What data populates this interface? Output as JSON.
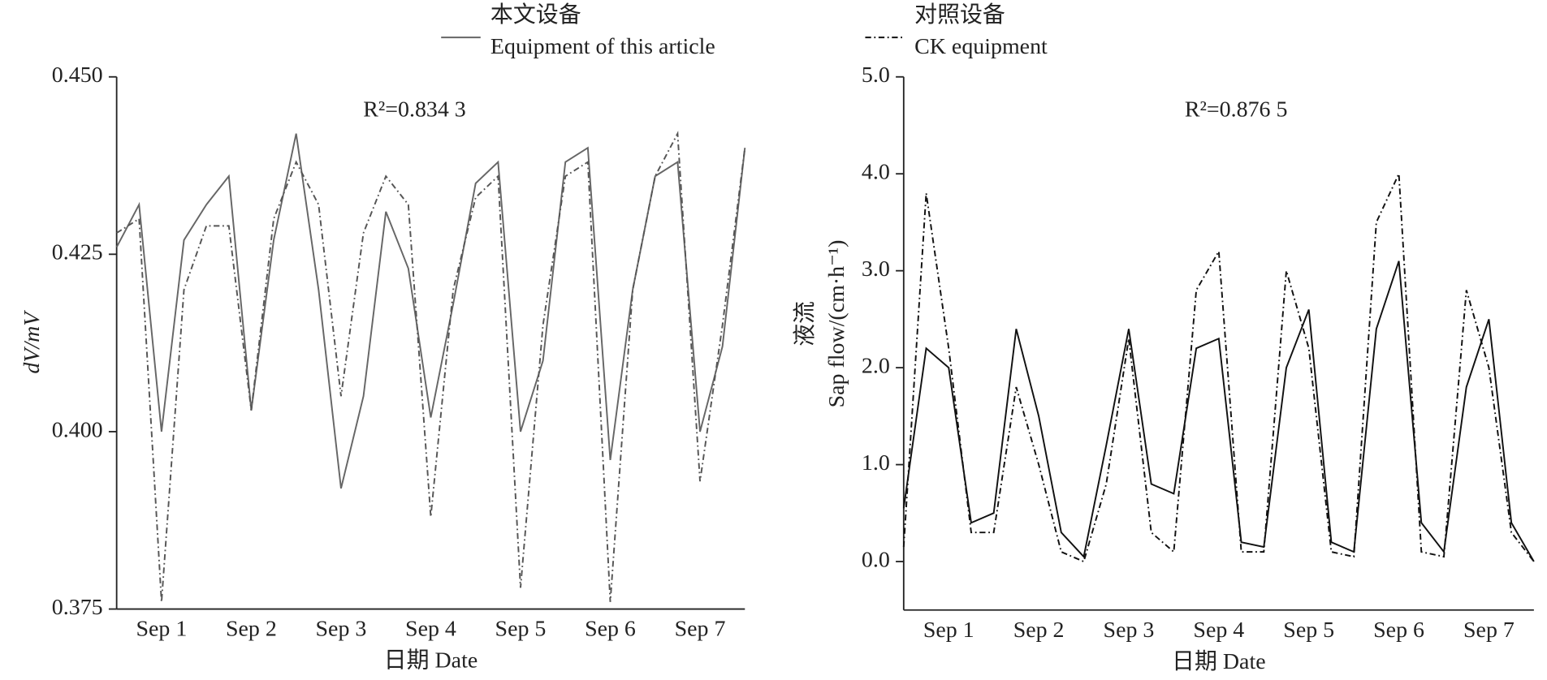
{
  "chart_data": [
    {
      "type": "line",
      "ylabel": "dV/mV",
      "xlabel": "日期 Date",
      "annotation": "R²=0.834 3",
      "xlim": [
        0,
        7
      ],
      "xticks": [
        {
          "value": 0.5,
          "label": "Sep 1"
        },
        {
          "value": 1.5,
          "label": "Sep 2"
        },
        {
          "value": 2.5,
          "label": "Sep 3"
        },
        {
          "value": 3.5,
          "label": "Sep 4"
        },
        {
          "value": 4.5,
          "label": "Sep 5"
        },
        {
          "value": 5.5,
          "label": "Sep 6"
        },
        {
          "value": 6.5,
          "label": "Sep 7"
        }
      ],
      "ylim": [
        0.375,
        0.45
      ],
      "yticks": [
        {
          "value": 0.45,
          "label": "0.450"
        },
        {
          "value": 0.425,
          "label": "0.425"
        },
        {
          "value": 0.4,
          "label": "0.400"
        },
        {
          "value": 0.375,
          "label": "0.375"
        }
      ],
      "x": [
        0,
        0.25,
        0.5,
        0.75,
        1,
        1.25,
        1.5,
        1.75,
        2,
        2.25,
        2.5,
        2.75,
        3,
        3.25,
        3.5,
        3.75,
        4,
        4.25,
        4.5,
        4.75,
        5,
        5.25,
        5.5,
        5.75,
        6,
        6.25,
        6.5,
        6.75,
        7
      ],
      "series": [
        {
          "name": [
            "本文设备",
            "Equipment of this article"
          ],
          "color": "#666666",
          "dash": "solid",
          "values": [
            0.426,
            0.432,
            0.4,
            0.427,
            0.432,
            0.436,
            0.403,
            0.427,
            0.442,
            0.42,
            0.392,
            0.405,
            0.431,
            0.423,
            0.402,
            0.418,
            0.435,
            0.438,
            0.4,
            0.41,
            0.438,
            0.44,
            0.396,
            0.42,
            0.436,
            0.438,
            0.4,
            0.412,
            0.44
          ]
        },
        {
          "color": "#555555",
          "dash": "dashdot",
          "values": [
            0.428,
            0.43,
            0.376,
            0.42,
            0.429,
            0.429,
            0.403,
            0.43,
            0.438,
            0.432,
            0.405,
            0.428,
            0.436,
            0.432,
            0.388,
            0.42,
            0.433,
            0.436,
            0.378,
            0.415,
            0.436,
            0.438,
            0.376,
            0.42,
            0.436,
            0.442,
            0.393,
            0.415,
            0.44
          ]
        }
      ]
    },
    {
      "type": "line",
      "ylabel": [
        "液流",
        "Sap flow/(cm·h⁻¹)"
      ],
      "xlabel": "日期 Date",
      "annotation": "R²=0.876 5",
      "xlim": [
        0,
        7
      ],
      "xticks": [
        {
          "value": 0.5,
          "label": "Sep 1"
        },
        {
          "value": 1.5,
          "label": "Sep 2"
        },
        {
          "value": 2.5,
          "label": "Sep 3"
        },
        {
          "value": 3.5,
          "label": "Sep 4"
        },
        {
          "value": 4.5,
          "label": "Sep 5"
        },
        {
          "value": 5.5,
          "label": "Sep 6"
        },
        {
          "value": 6.5,
          "label": "Sep 7"
        }
      ],
      "ylim": [
        -0.5,
        5.0
      ],
      "yticks": [
        {
          "value": 0,
          "label": "0.0"
        },
        {
          "value": 1,
          "label": "1.0"
        },
        {
          "value": 2,
          "label": "2.0"
        },
        {
          "value": 3,
          "label": "3.0"
        },
        {
          "value": 4,
          "label": "4.0"
        },
        {
          "value": 5,
          "label": "5.0"
        }
      ],
      "x": [
        0,
        0.25,
        0.5,
        0.75,
        1,
        1.25,
        1.5,
        1.75,
        2,
        2.25,
        2.5,
        2.75,
        3,
        3.25,
        3.5,
        3.75,
        4,
        4.25,
        4.5,
        4.75,
        5,
        5.25,
        5.5,
        5.75,
        6,
        6.25,
        6.5,
        6.75,
        7
      ],
      "series": [
        {
          "color": "#111111",
          "dash": "solid",
          "values": [
            0.55,
            2.2,
            2.0,
            0.4,
            0.5,
            2.4,
            1.5,
            0.3,
            0.05,
            1.2,
            2.4,
            0.8,
            0.7,
            2.2,
            2.3,
            0.2,
            0.15,
            2.0,
            2.6,
            0.2,
            0.1,
            2.4,
            3.1,
            0.4,
            0.1,
            1.8,
            2.5,
            0.4,
            0.0
          ]
        },
        {
          "name": [
            "对照设备",
            "CK equipment"
          ],
          "color": "#111111",
          "dash": "dashdot",
          "values": [
            0.15,
            3.8,
            2.2,
            0.3,
            0.3,
            1.8,
            1.0,
            0.1,
            0.0,
            0.8,
            2.3,
            0.3,
            0.1,
            2.8,
            3.2,
            0.1,
            0.1,
            3.0,
            2.2,
            0.1,
            0.05,
            3.5,
            4.0,
            0.1,
            0.05,
            2.8,
            2.0,
            0.3,
            0.0
          ]
        }
      ]
    }
  ]
}
